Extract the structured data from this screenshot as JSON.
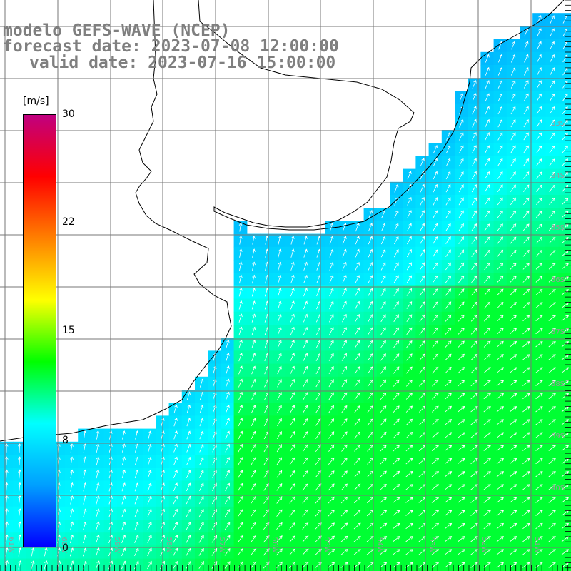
{
  "title": {
    "line1": "modelo GEFS-WAVE (NCEP)",
    "line2": "forecast date: 2023-07-08 12:00:00",
    "line3": "valid date: 2023-07-16 15:00:00"
  },
  "colorbar": {
    "unit": "[m/s]",
    "ticks": [
      "30",
      "22",
      "15",
      "8",
      "0"
    ],
    "range": [
      0,
      30
    ],
    "colors": [
      "#0000ff",
      "#00a0ff",
      "#00ffff",
      "#00ff00",
      "#ffff00",
      "#ff8000",
      "#ff0000",
      "#c00080"
    ]
  },
  "map": {
    "land_color": "#ffffff",
    "grid": true,
    "lat_labels": [
      "33S",
      "34S",
      "35S",
      "36S",
      "37S",
      "38S",
      "39S",
      "40S"
    ],
    "lon_labels": [
      "61W",
      "60W",
      "59W",
      "58W",
      "57W",
      "56W",
      "55W",
      "54W",
      "53W",
      "52W",
      "51W"
    ],
    "field": "wind speed with direction arrows",
    "wind_speed_range_shown": [
      2,
      12
    ]
  }
}
